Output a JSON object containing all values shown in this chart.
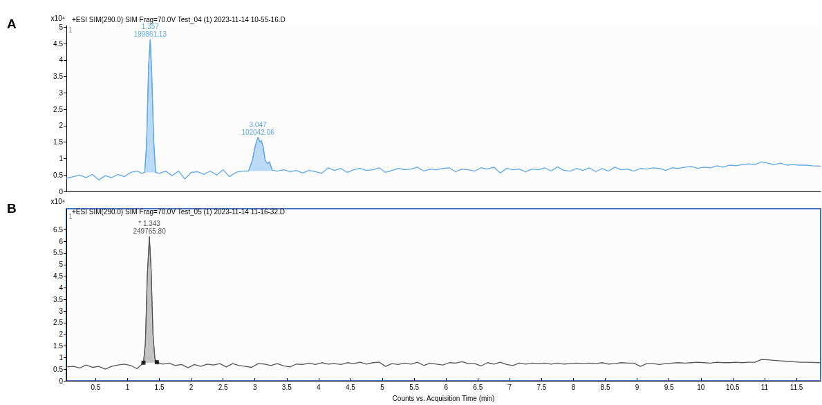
{
  "chart_data": [
    {
      "type": "line",
      "title": "+ESI SIM(290.0) SIM Frag=70.0V Test_04 (1) 2023-11-14 10-55-16.D",
      "ylabel": "x10⁴",
      "annotations": [
        "A",
        "1",
        {
          "text": "1.357\n199861.13",
          "x": 1.357,
          "y": 4.62
        },
        {
          "text": "3.047\n102042.06",
          "x": 3.047,
          "y": 1.65
        }
      ],
      "xlim": [
        0.04,
        11.88
      ],
      "ylim": [
        0,
        5.05
      ],
      "yticks": [
        0,
        0.5,
        1,
        1.5,
        2,
        2.5,
        3,
        3.5,
        4,
        4.5,
        5
      ],
      "tick_labels": "y",
      "series": [
        {
          "type": "line",
          "color": "#5aa7ea",
          "x": [
            0.04,
            0.15,
            0.25,
            0.35,
            0.45,
            0.55,
            0.65,
            0.75,
            0.85,
            0.95,
            1.05,
            1.15,
            1.22,
            1.27,
            1.3,
            1.33,
            1.357,
            1.38,
            1.41,
            1.44,
            1.5,
            1.6,
            1.7,
            1.8,
            1.9,
            2.0,
            2.1,
            2.2,
            2.3,
            2.4,
            2.5,
            2.6,
            2.7,
            2.8,
            2.9,
            2.96,
            3.0,
            3.047,
            3.08,
            3.1,
            3.13,
            3.16,
            3.2,
            3.23,
            3.27,
            3.35,
            3.45,
            3.55,
            3.65,
            3.75,
            3.85,
            3.95,
            4.05,
            4.15,
            4.25,
            4.35,
            4.45,
            4.55,
            4.65,
            4.75,
            4.85,
            4.95,
            5.05,
            5.15,
            5.25,
            5.35,
            5.45,
            5.55,
            5.65,
            5.75,
            5.85,
            5.95,
            6.05,
            6.15,
            6.25,
            6.35,
            6.45,
            6.55,
            6.65,
            6.75,
            6.85,
            6.95,
            7.05,
            7.15,
            7.25,
            7.35,
            7.45,
            7.55,
            7.65,
            7.75,
            7.85,
            7.95,
            8.05,
            8.15,
            8.25,
            8.35,
            8.45,
            8.55,
            8.65,
            8.75,
            8.85,
            8.95,
            9.05,
            9.15,
            9.25,
            9.35,
            9.45,
            9.55,
            9.65,
            9.75,
            9.85,
            9.95,
            10.05,
            10.15,
            10.25,
            10.35,
            10.45,
            10.55,
            10.65,
            10.75,
            10.85,
            10.95,
            11.05,
            11.15,
            11.25,
            11.35,
            11.45,
            11.55,
            11.65,
            11.75,
            11.88
          ],
          "values": [
            0.4,
            0.45,
            0.5,
            0.42,
            0.52,
            0.35,
            0.48,
            0.42,
            0.52,
            0.45,
            0.58,
            0.62,
            0.55,
            0.58,
            1.5,
            3.8,
            4.62,
            3.6,
            1.6,
            0.58,
            0.55,
            0.62,
            0.48,
            0.62,
            0.38,
            0.58,
            0.6,
            0.52,
            0.62,
            0.5,
            0.66,
            0.45,
            0.58,
            0.62,
            0.62,
            0.95,
            1.35,
            1.65,
            1.5,
            1.55,
            1.35,
            0.95,
            0.85,
            0.9,
            0.65,
            0.62,
            0.66,
            0.6,
            0.64,
            0.56,
            0.64,
            0.6,
            0.55,
            0.72,
            0.64,
            0.7,
            0.58,
            0.66,
            0.7,
            0.64,
            0.66,
            0.72,
            0.58,
            0.64,
            0.7,
            0.66,
            0.68,
            0.74,
            0.62,
            0.68,
            0.66,
            0.7,
            0.72,
            0.6,
            0.68,
            0.66,
            0.62,
            0.72,
            0.68,
            0.74,
            0.56,
            0.7,
            0.66,
            0.68,
            0.6,
            0.68,
            0.66,
            0.72,
            0.62,
            0.75,
            0.64,
            0.62,
            0.7,
            0.64,
            0.72,
            0.6,
            0.7,
            0.62,
            0.74,
            0.66,
            0.68,
            0.62,
            0.7,
            0.68,
            0.72,
            0.7,
            0.64,
            0.72,
            0.7,
            0.74,
            0.76,
            0.7,
            0.74,
            0.72,
            0.78,
            0.74,
            0.8,
            0.78,
            0.82,
            0.84,
            0.82,
            0.9,
            0.86,
            0.82,
            0.86,
            0.8,
            0.82,
            0.8,
            0.8,
            0.78,
            0.77
          ]
        },
        {
          "type": "area",
          "color": "#5aa7ea",
          "x": [
            1.27,
            1.3,
            1.33,
            1.357,
            1.38,
            1.41,
            1.44
          ],
          "values": [
            0.58,
            1.5,
            3.8,
            4.62,
            3.6,
            1.6,
            0.58
          ]
        },
        {
          "type": "area",
          "color": "#5aa7ea",
          "x": [
            2.9,
            2.96,
            3.0,
            3.047,
            3.08,
            3.1,
            3.13,
            3.16,
            3.2,
            3.23,
            3.27
          ],
          "values": [
            0.62,
            0.95,
            1.35,
            1.65,
            1.5,
            1.55,
            1.35,
            0.95,
            0.85,
            0.9,
            0.65
          ]
        }
      ]
    },
    {
      "type": "line",
      "title": "+ESI SIM(290.0) SIM Frag=70.0V Test_05 (1) 2023-11-14 11-16-32.D",
      "ylabel": "x10⁴",
      "xlabel": "Counts vs. Acquisition Time (min)",
      "annotations": [
        "B",
        "1",
        {
          "text": "* 1.343\n249765.80",
          "x": 1.343,
          "y": 6.2
        }
      ],
      "xlim": [
        0.04,
        11.88
      ],
      "xticks": [
        0.5,
        1,
        1.5,
        2,
        2.5,
        3,
        3.5,
        4,
        4.5,
        5,
        5.5,
        6,
        6.5,
        7,
        7.5,
        8,
        8.5,
        9,
        9.5,
        10,
        10.5,
        11,
        11.5
      ],
      "ylim": [
        0,
        7.4
      ],
      "yticks": [
        0,
        0.5,
        1,
        1.5,
        2,
        2.5,
        3,
        3.5,
        4,
        4.5,
        5,
        5.5,
        6,
        6.5
      ],
      "series": [
        {
          "type": "line",
          "color": "#555555",
          "x": [
            0.04,
            0.15,
            0.25,
            0.35,
            0.45,
            0.55,
            0.65,
            0.75,
            0.85,
            0.95,
            1.05,
            1.15,
            1.22,
            1.25,
            1.28,
            1.31,
            1.343,
            1.37,
            1.4,
            1.43,
            1.46,
            1.55,
            1.65,
            1.75,
            1.85,
            1.95,
            2.05,
            2.15,
            2.25,
            2.35,
            2.45,
            2.55,
            2.65,
            2.75,
            2.85,
            2.95,
            3.05,
            3.15,
            3.25,
            3.35,
            3.45,
            3.55,
            3.65,
            3.75,
            3.85,
            3.95,
            4.05,
            4.15,
            4.25,
            4.35,
            4.45,
            4.55,
            4.65,
            4.75,
            4.85,
            4.95,
            5.05,
            5.15,
            5.25,
            5.35,
            5.45,
            5.55,
            5.65,
            5.75,
            5.85,
            5.95,
            6.05,
            6.15,
            6.25,
            6.35,
            6.45,
            6.55,
            6.65,
            6.75,
            6.85,
            6.95,
            7.05,
            7.15,
            7.25,
            7.35,
            7.45,
            7.55,
            7.65,
            7.75,
            7.85,
            7.95,
            8.05,
            8.15,
            8.25,
            8.35,
            8.45,
            8.55,
            8.65,
            8.75,
            8.85,
            8.95,
            9.05,
            9.15,
            9.25,
            9.35,
            9.45,
            9.55,
            9.65,
            9.75,
            9.85,
            9.95,
            10.05,
            10.15,
            10.25,
            10.35,
            10.45,
            10.55,
            10.65,
            10.75,
            10.85,
            10.95,
            11.05,
            11.15,
            11.25,
            11.35,
            11.45,
            11.55,
            11.65,
            11.75,
            11.88
          ],
          "values": [
            0.6,
            0.62,
            0.55,
            0.68,
            0.58,
            0.62,
            0.5,
            0.62,
            0.68,
            0.72,
            0.66,
            0.52,
            0.7,
            0.78,
            1.6,
            4.5,
            6.2,
            4.8,
            2.0,
            0.95,
            0.8,
            0.72,
            0.76,
            0.66,
            0.7,
            0.56,
            0.7,
            0.62,
            0.72,
            0.68,
            0.74,
            0.6,
            0.74,
            0.66,
            0.62,
            0.58,
            0.74,
            0.72,
            0.66,
            0.74,
            0.64,
            0.6,
            0.72,
            0.7,
            0.76,
            0.7,
            0.78,
            0.72,
            0.74,
            0.7,
            0.78,
            0.74,
            0.8,
            0.72,
            0.78,
            0.8,
            0.62,
            0.74,
            0.7,
            0.76,
            0.72,
            0.8,
            0.66,
            0.76,
            0.72,
            0.68,
            0.78,
            0.76,
            0.82,
            0.74,
            0.74,
            0.64,
            0.78,
            0.72,
            0.8,
            0.7,
            0.66,
            0.76,
            0.72,
            0.76,
            0.74,
            0.76,
            0.72,
            0.76,
            0.72,
            0.74,
            0.76,
            0.74,
            0.76,
            0.74,
            0.78,
            0.72,
            0.74,
            0.78,
            0.76,
            0.76,
            0.62,
            0.74,
            0.74,
            0.7,
            0.74,
            0.76,
            0.78,
            0.76,
            0.78,
            0.8,
            0.78,
            0.76,
            0.8,
            0.78,
            0.78,
            0.8,
            0.78,
            0.8,
            0.8,
            0.92,
            0.9,
            0.88,
            0.86,
            0.84,
            0.82,
            0.8,
            0.8,
            0.79,
            0.78
          ]
        },
        {
          "type": "area",
          "color": "#6e6e6e",
          "x": [
            1.25,
            1.28,
            1.31,
            1.343,
            1.37,
            1.4,
            1.43,
            1.46
          ],
          "values": [
            0.78,
            1.6,
            4.5,
            6.2,
            4.8,
            2.0,
            0.95,
            0.8
          ]
        },
        {
          "type": "scatter",
          "color": "#000000",
          "marker": "square",
          "x": [
            1.25,
            1.46
          ],
          "values": [
            0.78,
            0.8
          ]
        }
      ]
    }
  ]
}
